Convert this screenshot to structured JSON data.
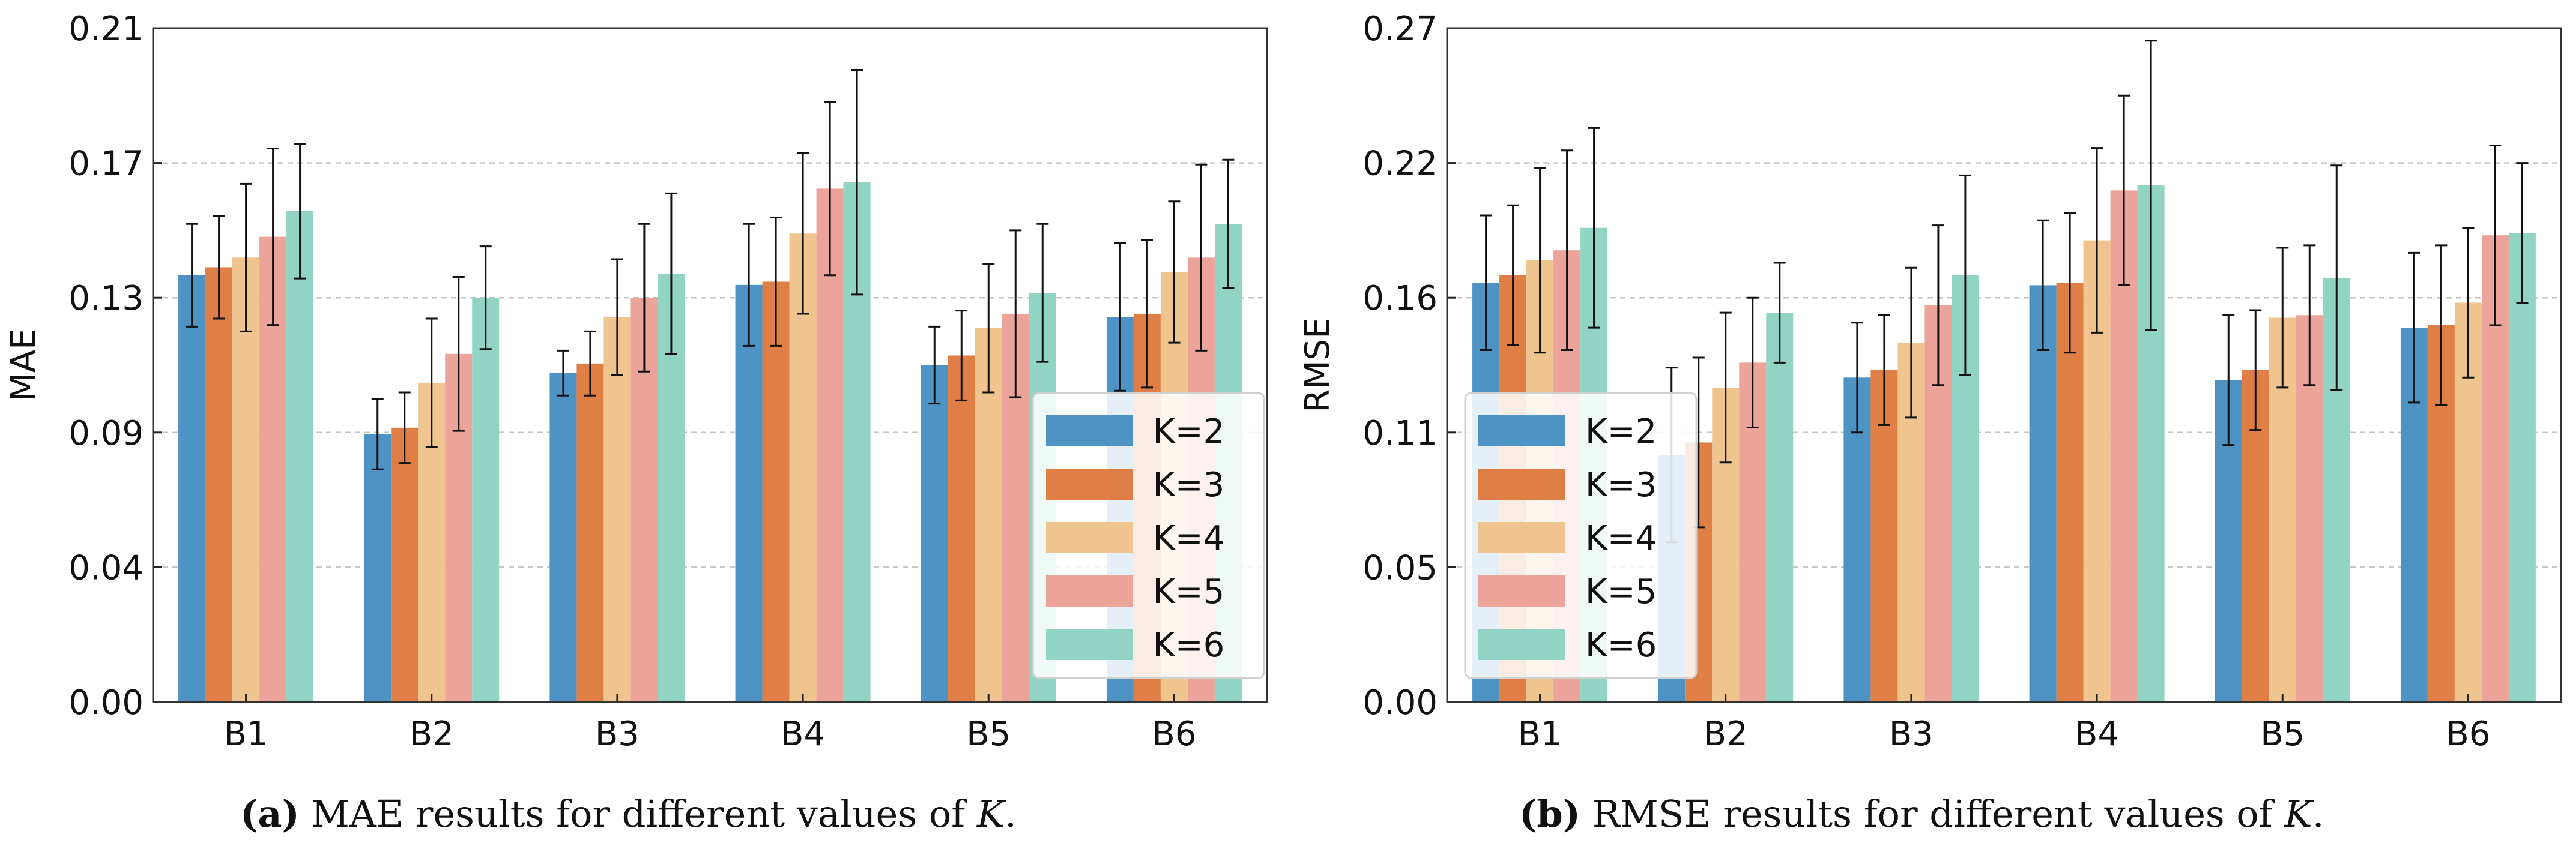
{
  "colors": {
    "K=2": "#4d94c5",
    "K=3": "#e07f45",
    "K=4": "#efc48f",
    "K=5": "#eba39a",
    "K=6": "#92d4c3"
  },
  "chart_data": [
    {
      "type": "bar",
      "title": "",
      "xlabel": "",
      "ylabel": "MAE",
      "ylim": [
        0,
        0.21
      ],
      "yticks": [
        "0.00",
        "0.04",
        "0.09",
        "0.13",
        "0.17",
        "0.21"
      ],
      "categories": [
        "B1",
        "B2",
        "B3",
        "B4",
        "B5",
        "B6"
      ],
      "grid": "horizontal dashed",
      "legend_position": "lower-right",
      "series": [
        {
          "name": "K=2",
          "values": [
            0.133,
            0.0835,
            0.1025,
            0.13,
            0.105,
            0.12
          ],
          "errors": [
            0.016,
            0.011,
            0.007,
            0.019,
            0.012,
            0.023
          ]
        },
        {
          "name": "K=3",
          "values": [
            0.1355,
            0.0855,
            0.1055,
            0.131,
            0.108,
            0.121
          ],
          "errors": [
            0.016,
            0.011,
            0.01,
            0.02,
            0.014,
            0.023
          ]
        },
        {
          "name": "K=4",
          "values": [
            0.1385,
            0.0995,
            0.12,
            0.146,
            0.1165,
            0.134
          ],
          "errors": [
            0.023,
            0.02,
            0.018,
            0.025,
            0.02,
            0.022
          ]
        },
        {
          "name": "K=5",
          "values": [
            0.145,
            0.1085,
            0.126,
            0.16,
            0.121,
            0.1385
          ],
          "errors": [
            0.0275,
            0.024,
            0.023,
            0.027,
            0.026,
            0.029
          ]
        },
        {
          "name": "K=6",
          "values": [
            0.153,
            0.126,
            0.1335,
            0.162,
            0.1275,
            0.149
          ],
          "errors": [
            0.021,
            0.016,
            0.025,
            0.035,
            0.0215,
            0.02
          ]
        }
      ]
    },
    {
      "type": "bar",
      "title": "",
      "xlabel": "",
      "ylabel": "RMSE",
      "ylim": [
        0,
        0.27
      ],
      "yticks": [
        "0.00",
        "0.05",
        "0.11",
        "0.16",
        "0.22",
        "0.27"
      ],
      "categories": [
        "B1",
        "B2",
        "B3",
        "B4",
        "B5",
        "B6"
      ],
      "grid": "horizontal dashed",
      "legend_position": "lower-left",
      "series": [
        {
          "name": "K=2",
          "values": [
            0.168,
            0.099,
            0.13,
            0.167,
            0.129,
            0.15
          ],
          "errors": [
            0.027,
            0.035,
            0.022,
            0.026,
            0.026,
            0.03
          ]
        },
        {
          "name": "K=3",
          "values": [
            0.171,
            0.104,
            0.133,
            0.168,
            0.133,
            0.151
          ],
          "errors": [
            0.028,
            0.034,
            0.022,
            0.028,
            0.024,
            0.032
          ]
        },
        {
          "name": "K=4",
          "values": [
            0.177,
            0.126,
            0.144,
            0.185,
            0.154,
            0.16
          ],
          "errors": [
            0.037,
            0.03,
            0.03,
            0.037,
            0.028,
            0.03
          ]
        },
        {
          "name": "K=5",
          "values": [
            0.181,
            0.136,
            0.159,
            0.205,
            0.155,
            0.187
          ],
          "errors": [
            0.04,
            0.026,
            0.032,
            0.038,
            0.028,
            0.036
          ]
        },
        {
          "name": "K=6",
          "values": [
            0.19,
            0.156,
            0.171,
            0.207,
            0.17,
            0.188
          ],
          "errors": [
            0.04,
            0.02,
            0.04,
            0.058,
            0.045,
            0.028
          ]
        }
      ]
    }
  ],
  "captions": [
    {
      "letter": "(a)",
      "before": " MAE results for different values of ",
      "var": "K",
      "after": "."
    },
    {
      "letter": "(b)",
      "before": " RMSE results for different values of ",
      "var": "K",
      "after": "."
    }
  ]
}
